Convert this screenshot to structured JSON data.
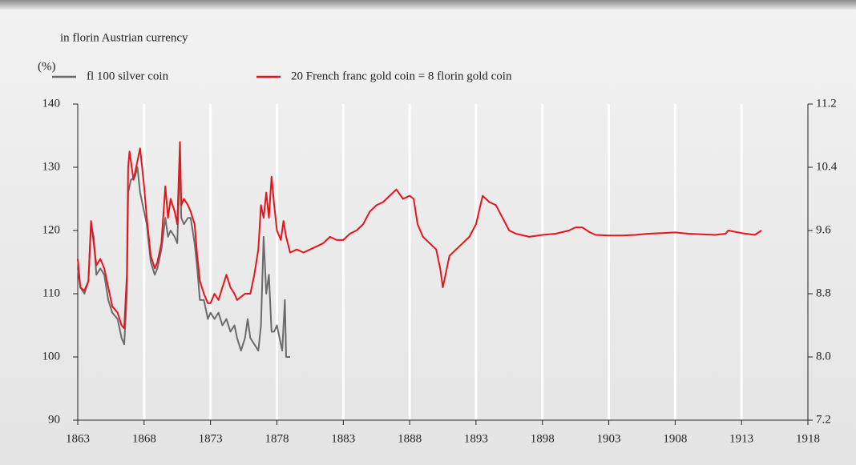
{
  "chart_data": {
    "type": "line",
    "subtitle": "in florin Austrian currency",
    "ylabel": "(%)",
    "xlim": [
      1863,
      1918
    ],
    "xticks": [
      1863,
      1868,
      1873,
      1878,
      1883,
      1888,
      1893,
      1898,
      1903,
      1908,
      1913,
      1918
    ],
    "ylim": [
      90,
      140
    ],
    "yticks": [
      90,
      100,
      110,
      120,
      130,
      140
    ],
    "y2lim": [
      7.2,
      11.2
    ],
    "y2ticks": [
      7.2,
      {
        "value": 8,
        "label": "8.0"
      },
      8.8,
      9.6,
      10.4,
      11.2
    ],
    "grid": true,
    "grid_color": "#ffffff",
    "series": [
      {
        "name": "fl 100 silver coin",
        "color": "#6b6b6b",
        "x": [
          1863.0,
          1863.2,
          1863.5,
          1863.8,
          1864.0,
          1864.2,
          1864.4,
          1864.7,
          1865.0,
          1865.3,
          1865.6,
          1866.0,
          1866.3,
          1866.5,
          1866.7,
          1866.8,
          1867.0,
          1867.3,
          1867.5,
          1867.7,
          1868.0,
          1868.2,
          1868.5,
          1868.8,
          1869.0,
          1869.3,
          1869.6,
          1869.8,
          1870.0,
          1870.3,
          1870.5,
          1870.7,
          1870.8,
          1871.0,
          1871.3,
          1871.5,
          1871.8,
          1872.0,
          1872.2,
          1872.5,
          1872.8,
          1873.0,
          1873.3,
          1873.6,
          1873.9,
          1874.2,
          1874.5,
          1874.8,
          1875.0,
          1875.3,
          1875.6,
          1875.8,
          1876.0,
          1876.3,
          1876.6,
          1876.8,
          1877.0,
          1877.2,
          1877.4,
          1877.6,
          1877.8,
          1878.0,
          1878.2,
          1878.4,
          1878.6,
          1878.7,
          1879.0
        ],
        "values": [
          114,
          111,
          110,
          112,
          121,
          119,
          113,
          114,
          113,
          109,
          107,
          106,
          103,
          102,
          110,
          126,
          128,
          128.5,
          130,
          126,
          123,
          121,
          115,
          113,
          114,
          117,
          122,
          119,
          120,
          119,
          118,
          131,
          122,
          121,
          122,
          122,
          118,
          114,
          109,
          109,
          106,
          107,
          106,
          107,
          105,
          106,
          104,
          105,
          103,
          101,
          103,
          106,
          103,
          102,
          101,
          105,
          119,
          110,
          113,
          104,
          104,
          105,
          103,
          101,
          109,
          100,
          100
        ]
      },
      {
        "name": "20 French franc gold coin = 8 florin gold coin",
        "color": "#e8141b",
        "x": [
          1863.0,
          1863.2,
          1863.5,
          1863.8,
          1864.0,
          1864.2,
          1864.4,
          1864.7,
          1865.0,
          1865.3,
          1865.6,
          1866.0,
          1866.3,
          1866.5,
          1866.7,
          1866.8,
          1866.9,
          1867.2,
          1867.5,
          1867.7,
          1868.0,
          1868.2,
          1868.5,
          1868.8,
          1869.0,
          1869.3,
          1869.6,
          1869.8,
          1870.0,
          1870.3,
          1870.5,
          1870.7,
          1870.8,
          1871.0,
          1871.3,
          1871.5,
          1871.8,
          1872.0,
          1872.2,
          1872.5,
          1872.8,
          1873.0,
          1873.3,
          1873.6,
          1873.9,
          1874.2,
          1874.5,
          1874.8,
          1875.0,
          1875.3,
          1875.6,
          1876.0,
          1876.3,
          1876.6,
          1876.8,
          1877.0,
          1877.2,
          1877.4,
          1877.6,
          1877.8,
          1878.0,
          1878.3,
          1878.5,
          1878.7,
          1879.0,
          1879.5,
          1880.0,
          1880.5,
          1881.0,
          1881.5,
          1882.0,
          1882.5,
          1883.0,
          1883.5,
          1884.0,
          1884.5,
          1885.0,
          1885.5,
          1886.0,
          1886.5,
          1887.0,
          1887.5,
          1888.0,
          1888.3,
          1888.6,
          1889.0,
          1889.5,
          1890.0,
          1890.3,
          1890.5,
          1890.7,
          1891.0,
          1891.5,
          1892.0,
          1892.5,
          1893.0,
          1893.5,
          1894.0,
          1894.5,
          1895.0,
          1895.5,
          1896.0,
          1897.0,
          1898.0,
          1899.0,
          1900.0,
          1900.5,
          1901.0,
          1901.5,
          1902.0,
          1903.0,
          1904.0,
          1905.0,
          1906.0,
          1907.0,
          1908.0,
          1909.0,
          1910.0,
          1911.0,
          1911.8,
          1912.0,
          1913.0,
          1914.0,
          1914.5
        ],
        "values": [
          115.5,
          111,
          110.5,
          112,
          121.5,
          118,
          114.5,
          115.5,
          114,
          111,
          108,
          107,
          105,
          104.5,
          113,
          130,
          132.5,
          128,
          131,
          133,
          127,
          122,
          116,
          114,
          115,
          118,
          127,
          122,
          125,
          123,
          121,
          134,
          124,
          125,
          124,
          123,
          121,
          116,
          112,
          110,
          108.5,
          108.5,
          110,
          109,
          111,
          113,
          111,
          110,
          109,
          109.5,
          110,
          110,
          113,
          117,
          124,
          122,
          126,
          122,
          128.5,
          124,
          120,
          118.5,
          121.5,
          119,
          116.5,
          117,
          116.5,
          117,
          117.5,
          118,
          119,
          118.5,
          118.5,
          119.5,
          120,
          121,
          123,
          124,
          124.5,
          125.5,
          126.5,
          125,
          125.5,
          125,
          121,
          119,
          118,
          117,
          114,
          111,
          113,
          116,
          117,
          118,
          119,
          121,
          125.5,
          124.5,
          124,
          122,
          120,
          119.5,
          119,
          119.3,
          119.5,
          120,
          120.5,
          120.5,
          119.8,
          119.3,
          119.2,
          119.2,
          119.3,
          119.5,
          119.6,
          119.7,
          119.5,
          119.4,
          119.3,
          119.5,
          120,
          119.6,
          119.3,
          120
        ]
      }
    ]
  }
}
